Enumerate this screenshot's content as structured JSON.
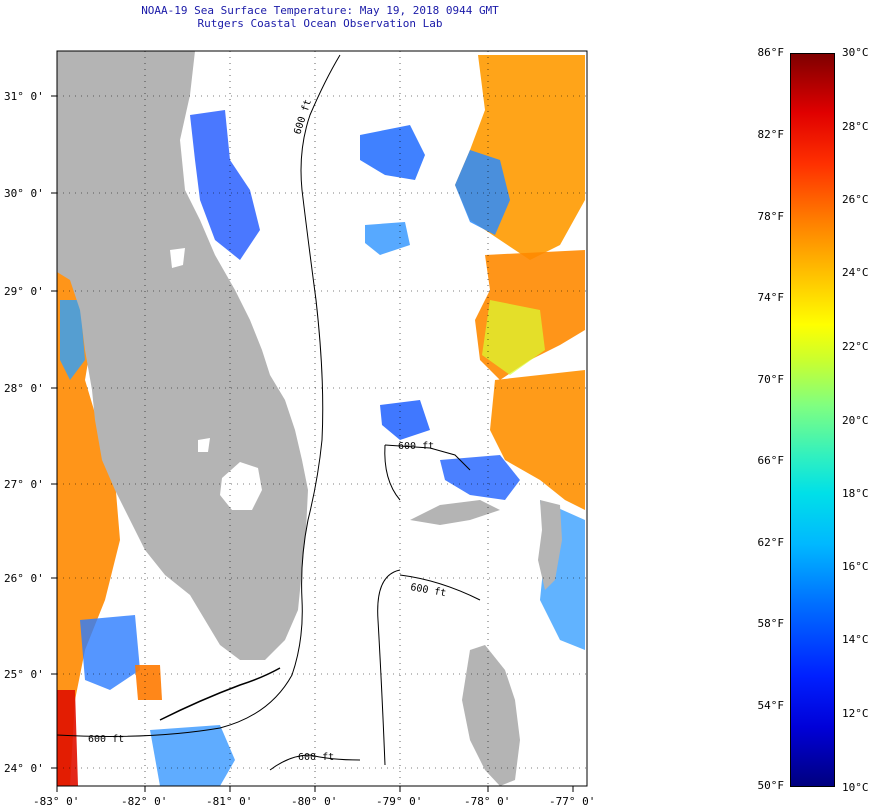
{
  "title": {
    "line1": "NOAA-19 Sea Surface Temperature:  May 19, 2018 0944 GMT",
    "line2": "Rutgers Coastal Ocean Observation Lab"
  },
  "map": {
    "lon_range": [
      -83,
      -77
    ],
    "lat_range": [
      23.75,
      31.5
    ],
    "lon_ticks": [
      {
        "value": -83,
        "label": "-83° 0'"
      },
      {
        "value": -82,
        "label": "-82° 0'"
      },
      {
        "value": -81,
        "label": "-81° 0'"
      },
      {
        "value": -80,
        "label": "-80° 0'"
      },
      {
        "value": -79,
        "label": "-79° 0'"
      },
      {
        "value": -78,
        "label": "-78° 0'"
      },
      {
        "value": -77,
        "label": "-77° 0'"
      }
    ],
    "lat_ticks": [
      {
        "value": 31,
        "label": "31° 0'"
      },
      {
        "value": 30,
        "label": "30° 0'"
      },
      {
        "value": 29,
        "label": "29° 0'"
      },
      {
        "value": 28,
        "label": "28° 0'"
      },
      {
        "value": 27,
        "label": "27° 0'"
      },
      {
        "value": 26,
        "label": "26° 0'"
      },
      {
        "value": 25,
        "label": "25° 0'"
      },
      {
        "value": 24,
        "label": "24° 0'"
      }
    ],
    "contour_label": "600 ft",
    "land_color": "#b4b4b4",
    "grid": true
  },
  "colorbar": {
    "fahrenheit": [
      "86°F",
      "82°F",
      "78°F",
      "74°F",
      "70°F",
      "66°F",
      "62°F",
      "58°F",
      "54°F",
      "50°F"
    ],
    "celsius": [
      "30°C",
      "28°C",
      "26°C",
      "24°C",
      "22°C",
      "20°C",
      "18°C",
      "16°C",
      "14°C",
      "12°C",
      "10°C"
    ],
    "colors": [
      "#00007f",
      "#0000ff",
      "#00a0ff",
      "#00ffff",
      "#80ff80",
      "#ffff00",
      "#ff8000",
      "#ff0000",
      "#7f0000"
    ]
  }
}
